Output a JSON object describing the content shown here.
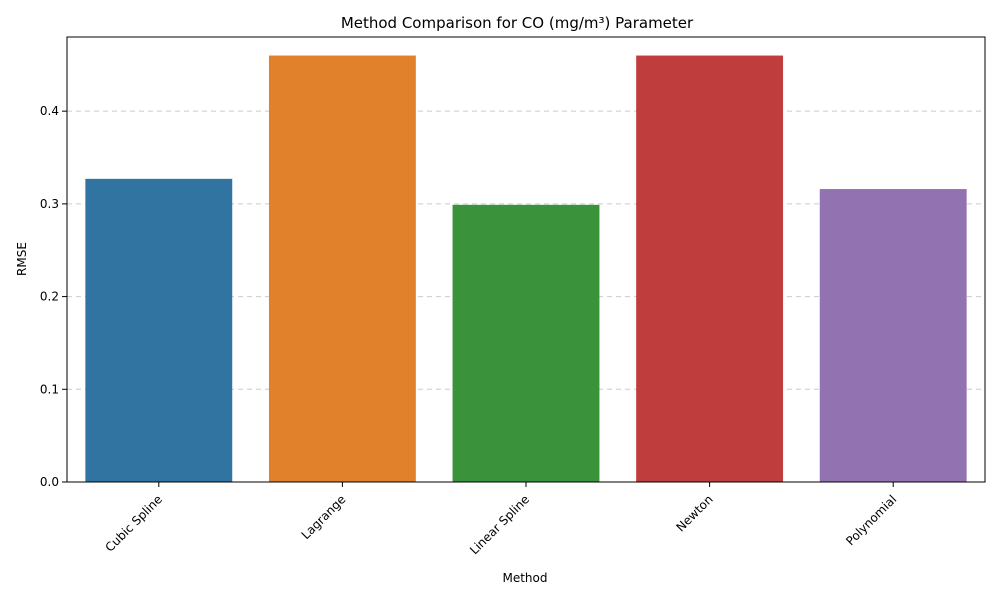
{
  "chart_data": {
    "type": "bar",
    "title": "Method Comparison for CO (mg/m³) Parameter",
    "xlabel": "Method",
    "ylabel": "RMSE",
    "categories": [
      "Cubic Spline",
      "Lagrange",
      "Linear Spline",
      "Newton",
      "Polynomial"
    ],
    "values": [
      0.327,
      0.46,
      0.299,
      0.46,
      0.316
    ],
    "colors": [
      "#3274a1",
      "#e1812c",
      "#3a923a",
      "#c03d3e",
      "#9372b2"
    ],
    "ylim": [
      0,
      0.48
    ],
    "yticks": [
      0.0,
      0.1,
      0.2,
      0.3,
      0.4
    ],
    "ytick_labels": [
      "0.0",
      "0.1",
      "0.2",
      "0.3",
      "0.4"
    ],
    "grid": "y-dashed",
    "legend": "none"
  }
}
